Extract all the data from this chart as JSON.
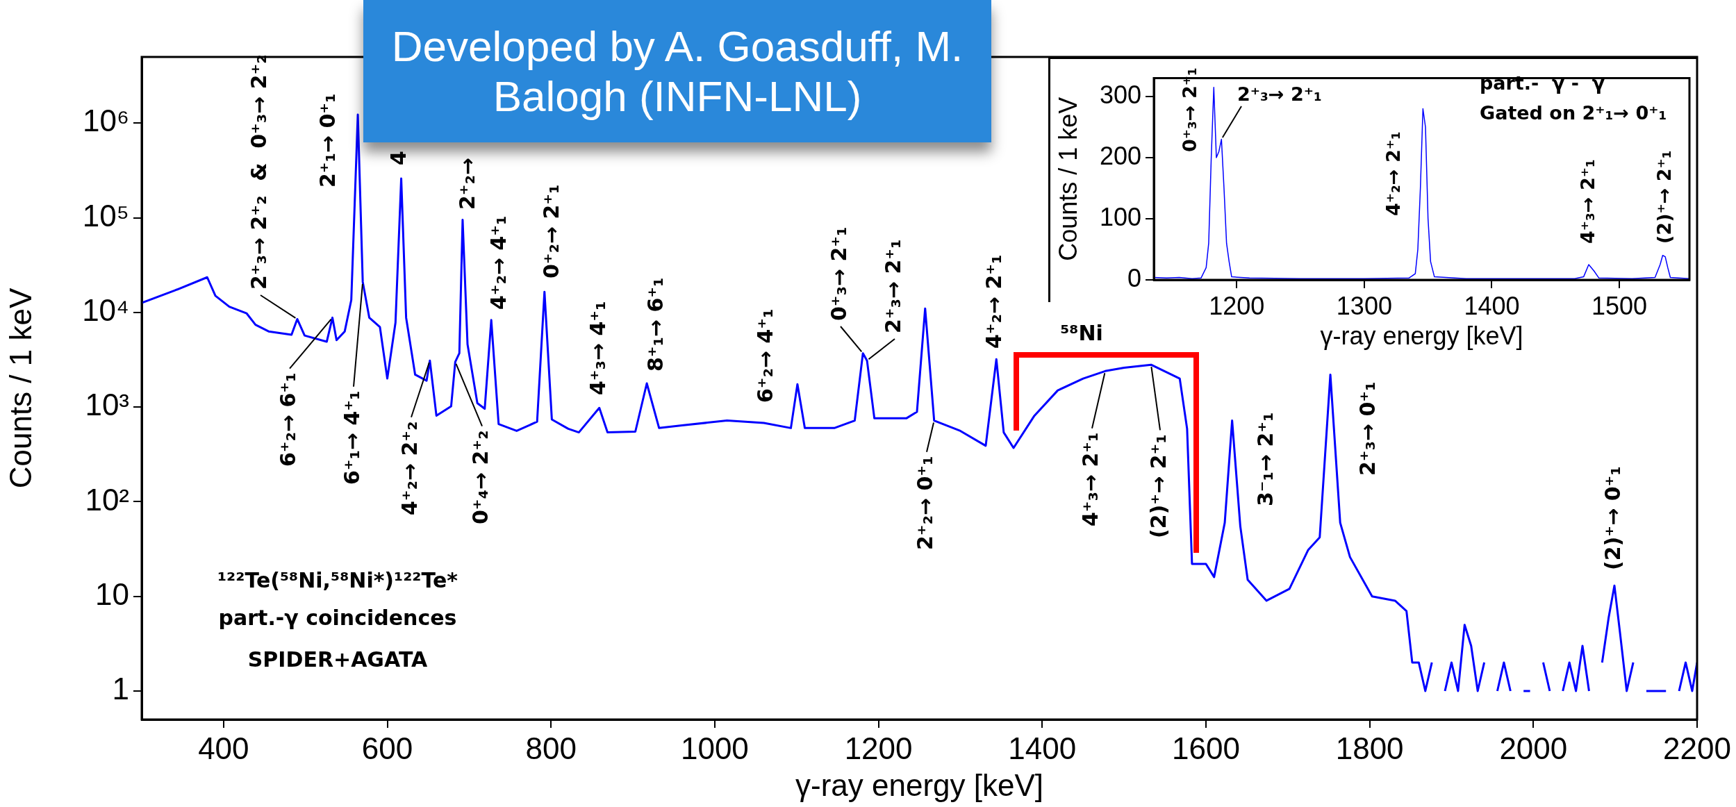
{
  "chart_data": [
    {
      "type": "line",
      "xlabel": "γ-ray energy [keV]",
      "ylabel": "Counts / 1 keV",
      "color": "#0000ff",
      "log": "y",
      "grid": false,
      "legend": false,
      "marker": "none",
      "x": [
        300,
        340,
        380,
        390,
        407,
        428,
        439,
        455,
        483,
        490,
        499,
        526,
        533,
        538,
        548,
        556,
        564,
        570,
        578,
        591,
        600,
        610,
        617,
        623,
        634,
        648,
        652,
        660,
        678,
        683,
        688,
        692,
        698,
        710,
        719,
        727,
        736,
        758,
        783,
        792,
        801,
        821,
        834,
        859,
        869,
        903,
        917,
        932,
        960,
        1015,
        1060,
        1093,
        1101,
        1110,
        1146,
        1171,
        1181,
        1186,
        1195,
        1234,
        1247,
        1257,
        1268,
        1300,
        1331,
        1344,
        1353,
        1365,
        1390,
        1419,
        1450,
        1477,
        1500,
        1533,
        1568,
        1577,
        1583,
        1600,
        1610,
        1623,
        1632,
        1642,
        1651,
        1674,
        1702,
        1725,
        1739,
        1752,
        1764,
        1776,
        1803,
        1831,
        1845,
        1852,
        1860,
        1868,
        1876,
        1884,
        1892,
        1900,
        1908,
        1916,
        1924,
        1932,
        1940,
        1948,
        1956,
        1964,
        1972,
        1980,
        1988,
        1996,
        2004,
        2012,
        2020,
        2028,
        2036,
        2044,
        2052,
        2060,
        2068,
        2076,
        2084,
        2092,
        2099,
        2106,
        2114,
        2122,
        2130,
        2138,
        2146,
        2154,
        2162,
        2170,
        2178,
        2186,
        2194,
        2200
      ],
      "values": [
        12600,
        17000,
        23500,
        15000,
        11500,
        9800,
        7400,
        6300,
        5800,
        8500,
        5700,
        4900,
        8800,
        5100,
        6300,
        13500,
        1230000,
        21000,
        8800,
        7000,
        2000,
        7800,
        260000,
        8800,
        2200,
        1900,
        3100,
        810,
        1020,
        3000,
        3700,
        95000,
        4600,
        1100,
        960,
        8300,
        660,
        560,
        700,
        16500,
        740,
        590,
        540,
        980,
        540,
        550,
        1780,
        600,
        640,
        720,
        680,
        600,
        1740,
        600,
        600,
        720,
        3700,
        3100,
        760,
        760,
        890,
        11000,
        720,
        560,
        390,
        3200,
        540,
        370,
        800,
        1500,
        2000,
        2400,
        2600,
        2800,
        2000,
        590,
        22,
        22,
        16,
        60,
        720,
        55,
        15,
        9,
        12,
        31,
        42,
        2200,
        60,
        26,
        10,
        9,
        7,
        2,
        2,
        1,
        2,
        null,
        1,
        2,
        1,
        5,
        3,
        1,
        2,
        null,
        1,
        2,
        1,
        null,
        1,
        1,
        null,
        2,
        1,
        null,
        1,
        2,
        1,
        3,
        1,
        null,
        2,
        6,
        13,
        4,
        1,
        2,
        null,
        1,
        1,
        1,
        1,
        null,
        1,
        2,
        1,
        2
      ],
      "xlim": [
        300,
        2200
      ],
      "xticks": [
        400,
        600,
        800,
        1000,
        1200,
        1400,
        1600,
        1800,
        2000,
        2200
      ],
      "ylim": [
        0.5,
        5000000
      ],
      "yticks": [
        1,
        10,
        {
          "value": 100,
          "label": "10²"
        },
        {
          "value": 1000,
          "label": "10³"
        },
        {
          "value": 10000,
          "label": "10⁴"
        },
        {
          "value": 100000,
          "label": "10⁵"
        },
        {
          "value": 1000000,
          "label": "10⁶"
        }
      ],
      "annotations": [
        {
          "text": "2⁺₃→ 2⁺₂  &  0⁺₃→ 2⁺₂",
          "x": 490,
          "y": 8500
        },
        {
          "text": "2⁺₁→ 0⁺₁",
          "x": 564,
          "y": 1230000
        },
        {
          "text": "4",
          "x": 617,
          "y": 260000
        },
        {
          "text": "2⁺₂→",
          "x": 692,
          "y": 95000
        },
        {
          "text": "4⁺₂→ 4⁺₁",
          "x": 727,
          "y": 8300
        },
        {
          "text": "0⁺₂→ 2⁺₁",
          "x": 792,
          "y": 16500
        },
        {
          "text": "4⁺₃→ 4⁺₁",
          "x": 859,
          "y": 980
        },
        {
          "text": "8⁺₁→ 6⁺₁",
          "x": 917,
          "y": 1780
        },
        {
          "text": "6⁺₂→ 4⁺₁",
          "x": 1101,
          "y": 1740
        },
        {
          "text": "0⁺₃→ 2⁺₁",
          "x": 1181,
          "y": 3700
        },
        {
          "text": "2⁺₃→ 2⁺₁",
          "x": 1186,
          "y": 3100
        },
        {
          "text": "4⁺₂→ 2⁺₁",
          "x": 1344,
          "y": 3200
        },
        {
          "text": "6⁺₂→ 6⁺₁",
          "x": 533,
          "y": 8800
        },
        {
          "text": "6⁺₁→ 4⁺₁",
          "x": 570,
          "y": 21000
        },
        {
          "text": "4⁺₂→ 2⁺₂",
          "x": 652,
          "y": 3100
        },
        {
          "text": "0⁺₄→ 2⁺₂",
          "x": 683,
          "y": 3000
        },
        {
          "text": "2⁺₂→ 0⁺₁",
          "x": 1268,
          "y": 720
        },
        {
          "text": "4⁺₃→ 2⁺₁",
          "x": 1477,
          "y": 2400
        },
        {
          "text": "(2)⁺→ 2⁺₁",
          "x": 1533,
          "y": 2800
        },
        {
          "text": "3⁻₁→ 2⁺₁",
          "x": 1632,
          "y": 720
        },
        {
          "text": "2⁺₃→ 0⁺₁",
          "x": 1752,
          "y": 2200
        },
        {
          "text": "(2)⁺→ 0⁺₁",
          "x": 2099,
          "y": 13
        },
        "¹²²Te(⁵⁸Ni,⁵⁸Ni*)¹²²Te*",
        "part.-γ coincidences",
        "SPIDER+AGATA",
        "⁵⁸Ni",
        "Developed by A. Goasduff, M. Balogh (INFN-LNL)"
      ]
    },
    {
      "type": "line",
      "xlabel": "γ-ray energy [keV]",
      "ylabel": "Counts / 1 keV",
      "color": "#0000ff",
      "grid": false,
      "legend": false,
      "marker": "none",
      "x": [
        1135,
        1145,
        1155,
        1165,
        1172,
        1176,
        1178,
        1180,
        1182,
        1184,
        1186,
        1188,
        1190,
        1192,
        1194,
        1196,
        1210,
        1250,
        1300,
        1335,
        1340,
        1342,
        1344,
        1346,
        1348,
        1350,
        1352,
        1355,
        1380,
        1420,
        1465,
        1472,
        1476,
        1480,
        1484,
        1510,
        1528,
        1532,
        1534,
        1536,
        1538,
        1540,
        1555
      ],
      "values": [
        4,
        3,
        4,
        2,
        3,
        20,
        60,
        200,
        315,
        200,
        210,
        230,
        150,
        60,
        30,
        5,
        3,
        2,
        2,
        3,
        10,
        50,
        150,
        280,
        250,
        100,
        30,
        5,
        2,
        2,
        2,
        5,
        25,
        15,
        3,
        2,
        4,
        25,
        40,
        38,
        20,
        4,
        2
      ],
      "xlim": [
        1135,
        1555
      ],
      "xticks": [
        1200,
        1300,
        1400,
        1500
      ],
      "ylim": [
        0,
        330
      ],
      "yticks": [
        0,
        100,
        200,
        300
      ],
      "annotations": [
        {
          "text": "0⁺₃→ 2⁺₁",
          "x": 1182,
          "y": 315
        },
        {
          "text": "2⁺₃→ 2⁺₁",
          "x": 1188,
          "y": 230
        },
        {
          "text": "4⁺₂→ 2⁺₁",
          "x": 1346,
          "y": 280
        },
        {
          "text": "4⁺₃→ 2⁺₁",
          "x": 1476,
          "y": 25
        },
        {
          "text": "(2)⁺→ 2⁺₁",
          "x": 1534,
          "y": 40
        },
        "part.-  γ -  γ",
        "Gated on 2⁺₁→ 0⁺₁"
      ]
    }
  ]
}
